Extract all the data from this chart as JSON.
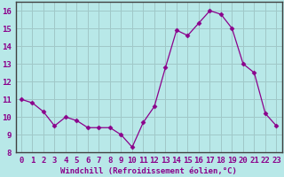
{
  "x": [
    0,
    1,
    2,
    3,
    4,
    5,
    6,
    7,
    8,
    9,
    10,
    11,
    12,
    13,
    14,
    15,
    16,
    17,
    18,
    19,
    20,
    21,
    22,
    23
  ],
  "y": [
    11.0,
    10.8,
    10.3,
    9.5,
    10.0,
    9.8,
    9.4,
    9.4,
    9.4,
    9.0,
    8.3,
    9.7,
    10.6,
    12.8,
    14.9,
    14.6,
    15.3,
    16.0,
    15.8,
    15.0,
    13.0,
    12.5,
    10.2,
    9.5
  ],
  "xlabel": "Windchill (Refroidissement éolien,°C)",
  "line_color": "#8b008b",
  "marker": "D",
  "marker_size": 2.5,
  "bg_color": "#b8e8e8",
  "grid_color": "#a0c8c8",
  "frame_color": "#404040",
  "label_color": "#8b008b",
  "ylim": [
    8,
    16.5
  ],
  "yticks": [
    8,
    9,
    10,
    11,
    12,
    13,
    14,
    15,
    16
  ],
  "xtick_labels": [
    "0",
    "1",
    "2",
    "3",
    "4",
    "5",
    "6",
    "7",
    "8",
    "9",
    "10",
    "11",
    "12",
    "13",
    "14",
    "15",
    "16",
    "17",
    "18",
    "19",
    "20",
    "21",
    "22",
    "23"
  ],
  "font_size": 6.5,
  "xlabel_fontsize": 6.5
}
